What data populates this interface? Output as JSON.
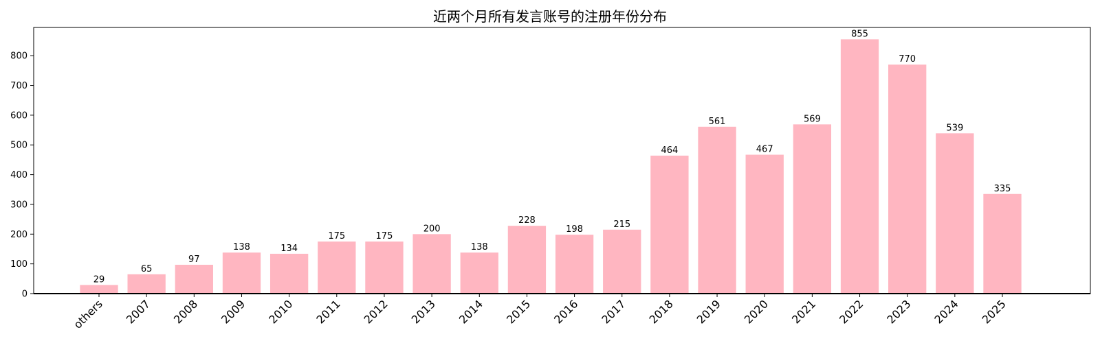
{
  "chart_data": {
    "type": "bar",
    "title": "近两个月所有发言账号的注册年份分布",
    "xlabel": "",
    "ylabel": "",
    "categories": [
      "others",
      "2007",
      "2008",
      "2009",
      "2010",
      "2011",
      "2012",
      "2013",
      "2014",
      "2015",
      "2016",
      "2017",
      "2018",
      "2019",
      "2020",
      "2021",
      "2022",
      "2023",
      "2024",
      "2025"
    ],
    "values": [
      29,
      65,
      97,
      138,
      134,
      175,
      175,
      200,
      138,
      228,
      198,
      215,
      464,
      561,
      467,
      569,
      855,
      770,
      539,
      335
    ],
    "ylim": [
      0,
      895
    ],
    "yticks": [
      0,
      100,
      200,
      300,
      400,
      500,
      600,
      700,
      800
    ],
    "bar_color": "#ffb6c1",
    "data_labels": true,
    "grid": false,
    "legend": "none"
  }
}
